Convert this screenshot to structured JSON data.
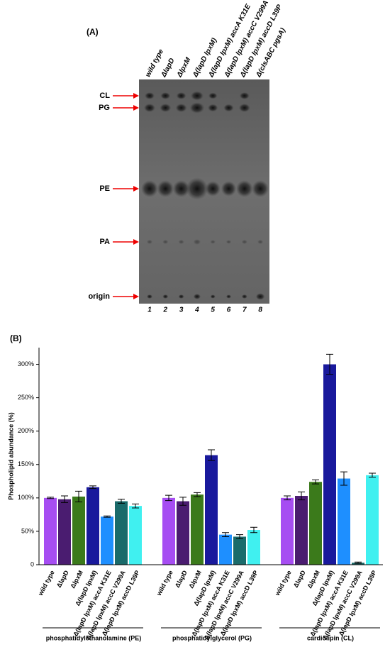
{
  "panel_a": {
    "label": "(A)",
    "lanes": [
      "wild type",
      "ΔlapD",
      "ΔlpxM",
      "Δ(lapD lpxM)",
      "Δ(lapD lpxM) accA K31E",
      "Δ(lapD lpxM) accC V299A",
      "Δ(lapD lpxM) accD L39P",
      "Δ(clsABC pgsA)"
    ],
    "lane_numbers": [
      "1",
      "2",
      "3",
      "4",
      "5",
      "6",
      "7",
      "8"
    ],
    "bands": [
      "CL",
      "PG",
      "PE",
      "PA",
      "origin"
    ]
  },
  "chart_data": {
    "type": "bar",
    "label": "(B)",
    "y_label": "Phospholipid abundance (%)",
    "categories": [
      "phosphatidylethanolamine (PE)",
      "phosphatidylglycerol (PG)",
      "cardiolipin (CL)"
    ],
    "series": [
      {
        "name": "wild type",
        "color": "#a64df2",
        "values": [
          100,
          100,
          100
        ],
        "errors": [
          1,
          4,
          3
        ]
      },
      {
        "name": "ΔlapD",
        "color": "#4a1c70",
        "values": [
          98,
          95,
          103
        ],
        "errors": [
          5,
          6,
          6
        ]
      },
      {
        "name": "ΔlpxM",
        "color": "#3b7a1b",
        "values": [
          102,
          105,
          124
        ],
        "errors": [
          8,
          3,
          3
        ]
      },
      {
        "name": "Δ(lapD lpxM)",
        "color": "#19199c",
        "values": [
          116,
          164,
          300
        ],
        "errors": [
          2,
          8,
          15
        ]
      },
      {
        "name": "Δ(lapD lpxM) accA K31E",
        "color": "#1e8fff",
        "values": [
          72,
          45,
          129
        ],
        "errors": [
          1,
          3,
          10
        ]
      },
      {
        "name": "Δ(lapD lpxM) accC V299A",
        "color": "#1a6b6b",
        "values": [
          95,
          42,
          3
        ],
        "errors": [
          3,
          3,
          1
        ]
      },
      {
        "name": "Δ(lapD lpxM) accD L39P",
        "color": "#40f0f0",
        "values": [
          88,
          52,
          134
        ],
        "errors": [
          3,
          4,
          3
        ]
      }
    ],
    "ylim": [
      0,
      325
    ],
    "yticks": [
      0,
      {
        "value": 50,
        "label": "50%"
      },
      {
        "value": 100,
        "label": "100%"
      },
      {
        "value": 150,
        "label": "150%"
      },
      {
        "value": 200,
        "label": "200%"
      },
      {
        "value": 250,
        "label": "250%"
      },
      {
        "value": 300,
        "label": "300%"
      }
    ]
  }
}
